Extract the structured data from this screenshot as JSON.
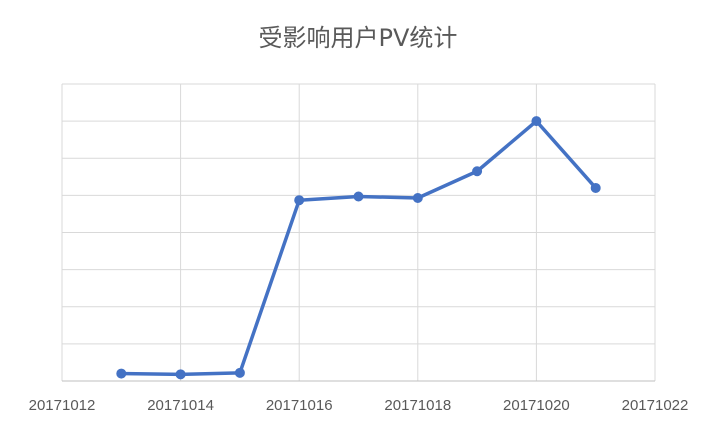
{
  "chart_data": {
    "type": "line",
    "title": "受影响用户PV统计",
    "xlabel": "",
    "ylabel": "",
    "x_tick_labels": [
      "20171012",
      "20171014",
      "20171016",
      "20171018",
      "20171020",
      "20171022"
    ],
    "xlim": [
      20171012,
      20171022
    ],
    "ylim": [
      0,
      8
    ],
    "grid": true,
    "y_tick_labels_visible": false,
    "series": [
      {
        "x": [
          20171013,
          20171014,
          20171015,
          20171016,
          20171017,
          20171018,
          20171019,
          20171020,
          20171021
        ],
        "values": [
          0.2,
          0.18,
          0.22,
          4.87,
          4.97,
          4.93,
          5.65,
          7.0,
          5.2
        ],
        "color": "#4472c4"
      }
    ]
  }
}
